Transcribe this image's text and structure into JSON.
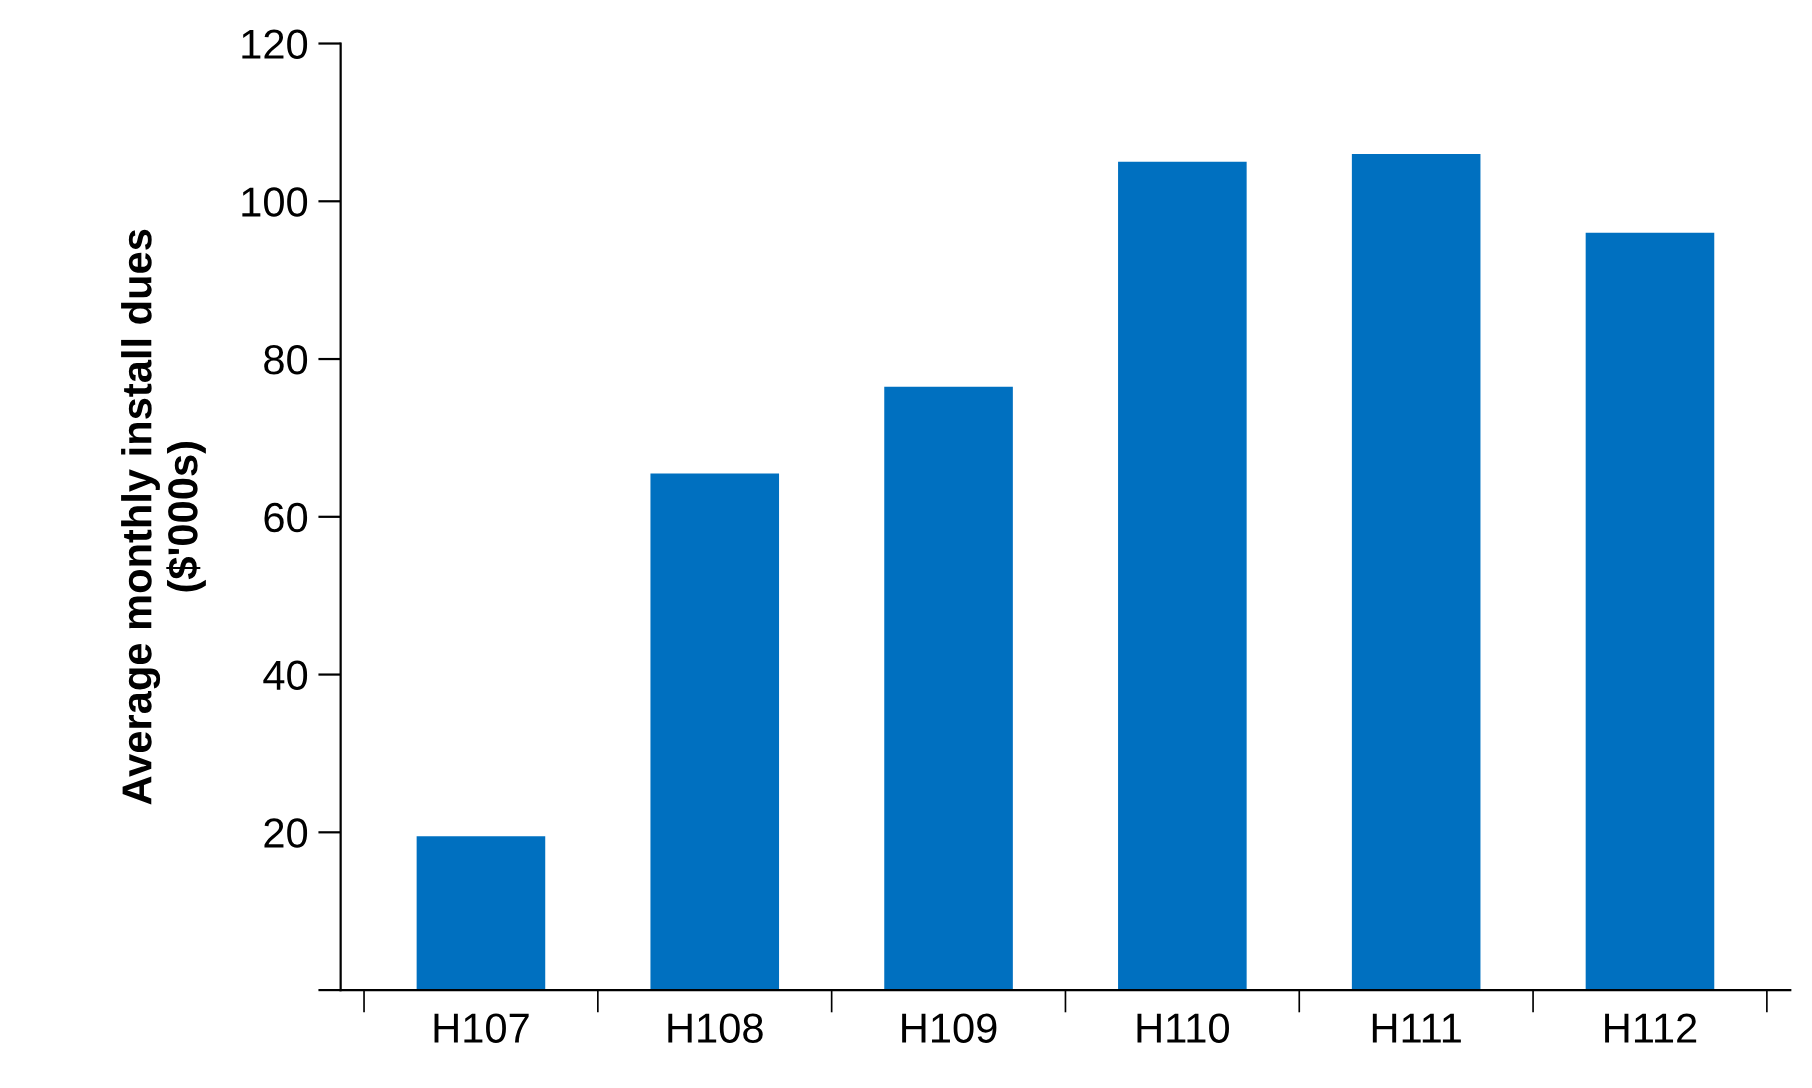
{
  "chart_data": {
    "type": "bar",
    "ylabel": "Average monthly install dues\n($'000s)",
    "categories": [
      "H107",
      "H108",
      "H109",
      "H110",
      "H111",
      "H112"
    ],
    "values": [
      19.5,
      65.5,
      76.5,
      105,
      106,
      96
    ],
    "color": "#0070c0",
    "ylim": [
      0,
      120
    ],
    "yticks": [
      {
        "value": 0,
        "label": null
      },
      20,
      40,
      60,
      80,
      100,
      120
    ],
    "grid": false,
    "legend": false
  }
}
